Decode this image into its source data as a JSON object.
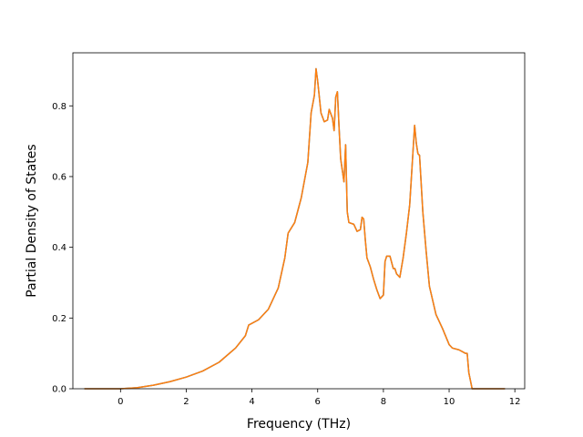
{
  "chart_data": {
    "type": "line",
    "title": "",
    "xlabel": "Frequency (THz)",
    "ylabel": "Partial Density of States",
    "xlim": [
      -1.45,
      12.3
    ],
    "ylim": [
      0.0,
      0.95
    ],
    "xticks": [
      0,
      2,
      4,
      6,
      8,
      10,
      12
    ],
    "xtick_labels": [
      "0",
      "2",
      "4",
      "6",
      "8",
      "10",
      "12"
    ],
    "yticks": [
      0.0,
      0.2,
      0.4,
      0.6,
      0.8
    ],
    "ytick_labels": [
      "0.0",
      "0.2",
      "0.4",
      "0.6",
      "0.8"
    ],
    "grid": false,
    "legend": "none",
    "series": [
      {
        "color": "#1f77b4",
        "x": [
          -1.1,
          0.0,
          0.5,
          1.0,
          1.5,
          2.0,
          2.5,
          3.0,
          3.5,
          3.8,
          3.9,
          4.2,
          4.5,
          4.8,
          5.0,
          5.1,
          5.3,
          5.5,
          5.7,
          5.8,
          5.9,
          5.95,
          6.0,
          6.1,
          6.2,
          6.3,
          6.35,
          6.45,
          6.5,
          6.55,
          6.6,
          6.65,
          6.7,
          6.8,
          6.85,
          6.9,
          6.95,
          7.1,
          7.2,
          7.3,
          7.35,
          7.4,
          7.45,
          7.5,
          7.6,
          7.7,
          7.8,
          7.9,
          8.0,
          8.05,
          8.1,
          8.2,
          8.3,
          8.35,
          8.4,
          8.5,
          8.6,
          8.7,
          8.8,
          8.9,
          8.95,
          9.0,
          9.05,
          9.1,
          9.15,
          9.2,
          9.3,
          9.4,
          9.6,
          9.8,
          10.0,
          10.1,
          10.3,
          10.4,
          10.5,
          10.55,
          10.6,
          10.7,
          11.0,
          11.7
        ],
        "y": [
          0.0,
          0.0,
          0.003,
          0.01,
          0.02,
          0.033,
          0.05,
          0.075,
          0.115,
          0.15,
          0.18,
          0.195,
          0.225,
          0.285,
          0.37,
          0.44,
          0.47,
          0.54,
          0.64,
          0.78,
          0.83,
          0.905,
          0.87,
          0.78,
          0.755,
          0.76,
          0.79,
          0.765,
          0.73,
          0.825,
          0.84,
          0.74,
          0.65,
          0.585,
          0.69,
          0.5,
          0.47,
          0.465,
          0.445,
          0.45,
          0.485,
          0.48,
          0.42,
          0.37,
          0.345,
          0.31,
          0.28,
          0.255,
          0.265,
          0.36,
          0.375,
          0.375,
          0.34,
          0.34,
          0.325,
          0.315,
          0.37,
          0.44,
          0.52,
          0.67,
          0.745,
          0.695,
          0.665,
          0.66,
          0.58,
          0.5,
          0.39,
          0.29,
          0.21,
          0.17,
          0.125,
          0.115,
          0.11,
          0.105,
          0.1,
          0.1,
          0.045,
          0.0,
          0.0,
          0.0
        ]
      },
      {
        "color": "#ff7f0e",
        "x": [
          -1.1,
          0.0,
          0.5,
          1.0,
          1.5,
          2.0,
          2.5,
          3.0,
          3.5,
          3.8,
          3.9,
          4.2,
          4.5,
          4.8,
          5.0,
          5.1,
          5.3,
          5.5,
          5.7,
          5.8,
          5.9,
          5.95,
          6.0,
          6.1,
          6.2,
          6.3,
          6.35,
          6.45,
          6.5,
          6.55,
          6.6,
          6.65,
          6.7,
          6.8,
          6.85,
          6.9,
          6.95,
          7.1,
          7.2,
          7.3,
          7.35,
          7.4,
          7.45,
          7.5,
          7.6,
          7.7,
          7.8,
          7.9,
          8.0,
          8.05,
          8.1,
          8.2,
          8.3,
          8.35,
          8.4,
          8.5,
          8.6,
          8.7,
          8.8,
          8.9,
          8.95,
          9.0,
          9.05,
          9.1,
          9.15,
          9.2,
          9.3,
          9.4,
          9.6,
          9.8,
          10.0,
          10.1,
          10.3,
          10.4,
          10.5,
          10.55,
          10.6,
          10.7,
          11.0,
          11.7
        ],
        "y": [
          0.0,
          0.0,
          0.003,
          0.01,
          0.02,
          0.033,
          0.05,
          0.075,
          0.115,
          0.15,
          0.18,
          0.195,
          0.225,
          0.285,
          0.37,
          0.44,
          0.47,
          0.54,
          0.64,
          0.78,
          0.83,
          0.905,
          0.87,
          0.78,
          0.755,
          0.76,
          0.79,
          0.765,
          0.73,
          0.825,
          0.84,
          0.74,
          0.65,
          0.585,
          0.69,
          0.5,
          0.47,
          0.465,
          0.445,
          0.45,
          0.485,
          0.48,
          0.42,
          0.37,
          0.345,
          0.31,
          0.28,
          0.255,
          0.265,
          0.36,
          0.375,
          0.375,
          0.34,
          0.34,
          0.325,
          0.315,
          0.37,
          0.44,
          0.52,
          0.67,
          0.745,
          0.695,
          0.665,
          0.66,
          0.58,
          0.5,
          0.39,
          0.29,
          0.21,
          0.17,
          0.125,
          0.115,
          0.11,
          0.105,
          0.1,
          0.1,
          0.045,
          0.0,
          0.0,
          0.0
        ]
      }
    ]
  }
}
